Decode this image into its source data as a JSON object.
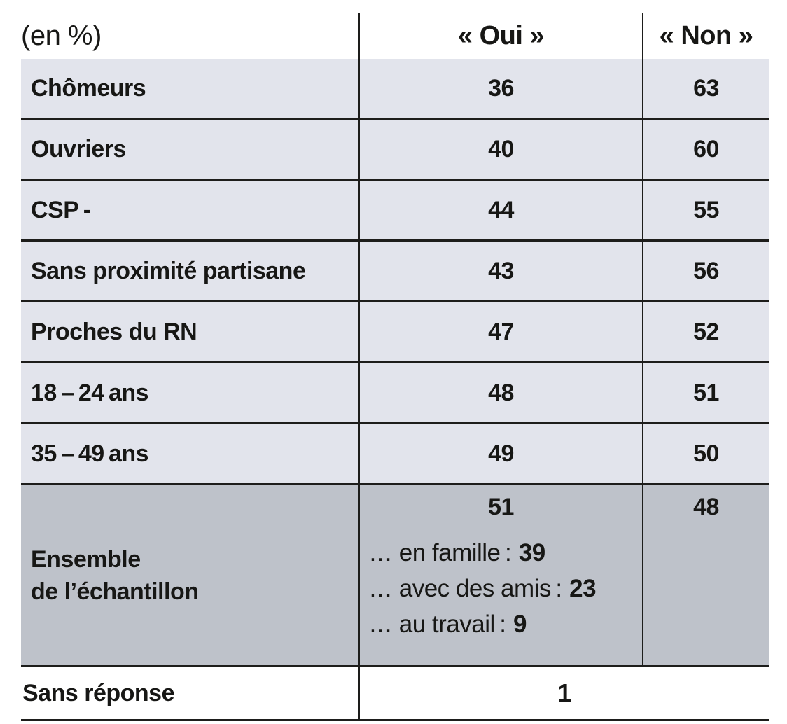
{
  "table": {
    "unit_label": "(en %)",
    "columns": {
      "oui": "« Oui »",
      "non": "« Non »"
    },
    "rows": [
      {
        "label": "Chômeurs",
        "oui": "36",
        "non": "63"
      },
      {
        "label": "Ouvriers",
        "oui": "40",
        "non": "60"
      },
      {
        "label": "CSP -",
        "oui": "44",
        "non": "55"
      },
      {
        "label": "Sans proximité partisane",
        "oui": "43",
        "non": "56"
      },
      {
        "label": "Proches du RN",
        "oui": "47",
        "non": "52"
      },
      {
        "label": "18 – 24 ans",
        "oui": "48",
        "non": "51"
      },
      {
        "label": "35 – 49 ans",
        "oui": "49",
        "non": "50"
      }
    ],
    "ensemble": {
      "label_line1": "Ensemble",
      "label_line2": "de l’échantillon",
      "oui": "51",
      "non": "48",
      "breakdown": [
        {
          "text": "… en famille :",
          "value": "39"
        },
        {
          "text": "… avec des amis :",
          "value": "23"
        },
        {
          "text": "… au travail :",
          "value": "9"
        }
      ]
    },
    "footer": {
      "label": "Sans réponse",
      "value": "1"
    }
  },
  "colors": {
    "row_light": "#e2e4ec",
    "row_dark": "#bec2ca",
    "border": "#1d1d1b",
    "text": "#171715",
    "background": "#ffffff"
  },
  "chart_data": {
    "type": "table",
    "unit": "en %",
    "columns": [
      "« Oui »",
      "« Non »"
    ],
    "rows": [
      {
        "category": "Chômeurs",
        "oui": 36,
        "non": 63
      },
      {
        "category": "Ouvriers",
        "oui": 40,
        "non": 60
      },
      {
        "category": "CSP -",
        "oui": 44,
        "non": 55
      },
      {
        "category": "Sans proximité partisane",
        "oui": 43,
        "non": 56
      },
      {
        "category": "Proches du RN",
        "oui": 47,
        "non": 52
      },
      {
        "category": "18 – 24 ans",
        "oui": 48,
        "non": 51
      },
      {
        "category": "35 – 49 ans",
        "oui": 49,
        "non": 50
      },
      {
        "category": "Ensemble de l’échantillon",
        "oui": 51,
        "non": 48,
        "oui_breakdown": [
          {
            "context": "en famille",
            "value": 39
          },
          {
            "context": "avec des amis",
            "value": 23
          },
          {
            "context": "au travail",
            "value": 9
          }
        ]
      },
      {
        "category": "Sans réponse",
        "value": 1
      }
    ],
    "layout": {
      "grid": "horizontal rules between rows",
      "highlight_row": "Ensemble de l’échantillon"
    }
  }
}
